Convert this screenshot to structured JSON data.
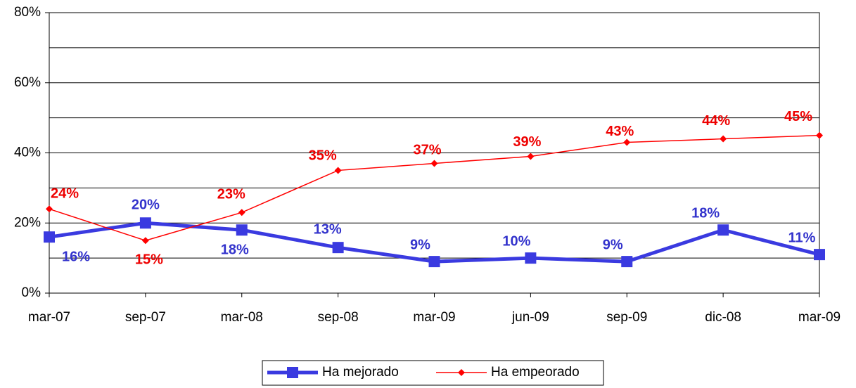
{
  "chart_data": {
    "type": "line",
    "categories": [
      "mar-07",
      "sep-07",
      "mar-08",
      "sep-08",
      "mar-09",
      "jun-09",
      "sep-09",
      "dic-08",
      "mar-09"
    ],
    "series": [
      {
        "name": "Ha mejorado",
        "color": "#3a3ae0",
        "marker": "square",
        "values": [
          16,
          20,
          18,
          13,
          9,
          10,
          9,
          18,
          11
        ],
        "value_labels": [
          "16%",
          "20%",
          "18%",
          "13%",
          "9%",
          "10%",
          "9%",
          "18%",
          "11%"
        ]
      },
      {
        "name": "Ha empeorado",
        "color": "#ff0000",
        "marker": "diamond",
        "values": [
          24,
          15,
          23,
          35,
          37,
          39,
          43,
          44,
          45
        ],
        "value_labels": [
          "24%",
          "15%",
          "23%",
          "35%",
          "37%",
          "39%",
          "43%",
          "44%",
          "45%"
        ]
      }
    ],
    "ylim": [
      0,
      80
    ],
    "yticks": [
      {
        "value": 0,
        "label": "0%"
      },
      {
        "value": 20,
        "label": "20%"
      },
      {
        "value": 40,
        "label": "40%"
      },
      {
        "value": 60,
        "label": "60%"
      },
      {
        "value": 80,
        "label": "80%"
      }
    ],
    "grid_lines": [
      10,
      20,
      30,
      40,
      50,
      60,
      70,
      80
    ],
    "legend": "bottom"
  }
}
